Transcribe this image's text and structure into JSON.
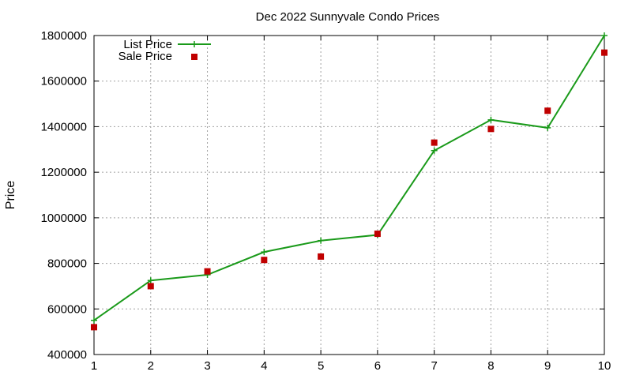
{
  "chart_data": {
    "type": "line",
    "title": "Dec 2022 Sunnyvale Condo Prices",
    "xlabel": "",
    "ylabel": "Price",
    "x": [
      1,
      2,
      3,
      4,
      5,
      6,
      7,
      8,
      9,
      10
    ],
    "xlim": [
      1,
      10
    ],
    "ylim": [
      400000,
      1800000
    ],
    "x_ticks": [
      "1",
      "2",
      "3",
      "4",
      "5",
      "6",
      "7",
      "8",
      "9",
      "10"
    ],
    "y_ticks": [
      "400000",
      "600000",
      "800000",
      "1000000",
      "1200000",
      "1400000",
      "1600000",
      "1800000"
    ],
    "grid": true,
    "legend_position": "top-left",
    "series": [
      {
        "name": "List Price",
        "style": "line-with-plus-markers",
        "color": "#1a9a1a",
        "values": [
          550000,
          725000,
          750000,
          850000,
          900000,
          925000,
          1295000,
          1430000,
          1395000,
          1800000
        ]
      },
      {
        "name": "Sale Price",
        "style": "square-markers",
        "color": "#c00000",
        "values": [
          520000,
          700000,
          765000,
          815000,
          830000,
          930000,
          1330000,
          1390000,
          1470000,
          1725000
        ]
      }
    ]
  }
}
